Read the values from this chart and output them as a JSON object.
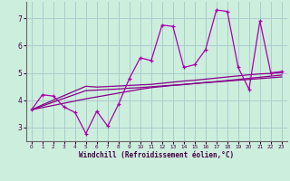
{
  "xlabel": "Windchill (Refroidissement éolien,°C)",
  "background_color": "#cceedd",
  "grid_color": "#aacccc",
  "line_color": "#aa00aa",
  "line_color2": "#880088",
  "x_values": [
    0,
    1,
    2,
    3,
    4,
    5,
    6,
    7,
    8,
    9,
    10,
    11,
    12,
    13,
    14,
    15,
    16,
    17,
    18,
    19,
    20,
    21,
    22,
    23
  ],
  "main_line": [
    3.65,
    4.2,
    4.15,
    3.75,
    3.55,
    2.78,
    3.6,
    3.05,
    3.85,
    4.8,
    5.55,
    5.45,
    6.75,
    6.7,
    5.2,
    5.3,
    5.85,
    7.3,
    7.25,
    5.2,
    4.4,
    6.9,
    5.0,
    5.05
  ],
  "trend1": [
    3.65,
    3.83,
    4.0,
    4.17,
    4.34,
    4.51,
    4.48,
    4.5,
    4.52,
    4.54,
    4.56,
    4.58,
    4.62,
    4.66,
    4.7,
    4.73,
    4.77,
    4.81,
    4.85,
    4.89,
    4.93,
    4.96,
    4.98,
    5.01
  ],
  "trend2": [
    3.65,
    3.79,
    3.93,
    4.07,
    4.21,
    4.35,
    4.37,
    4.39,
    4.41,
    4.44,
    4.46,
    4.49,
    4.52,
    4.55,
    4.58,
    4.61,
    4.64,
    4.67,
    4.7,
    4.73,
    4.76,
    4.79,
    4.82,
    4.85
  ],
  "trend3": [
    3.65,
    3.73,
    3.81,
    3.89,
    3.97,
    4.05,
    4.12,
    4.19,
    4.26,
    4.33,
    4.4,
    4.46,
    4.5,
    4.54,
    4.57,
    4.61,
    4.65,
    4.68,
    4.72,
    4.76,
    4.8,
    4.84,
    4.88,
    4.92
  ],
  "ylim": [
    2.5,
    7.6
  ],
  "xlim": [
    -0.5,
    23.5
  ],
  "yticks": [
    3,
    4,
    5,
    6,
    7
  ],
  "xticks": [
    0,
    1,
    2,
    3,
    4,
    5,
    6,
    7,
    8,
    9,
    10,
    11,
    12,
    13,
    14,
    15,
    16,
    17,
    18,
    19,
    20,
    21,
    22,
    23
  ]
}
